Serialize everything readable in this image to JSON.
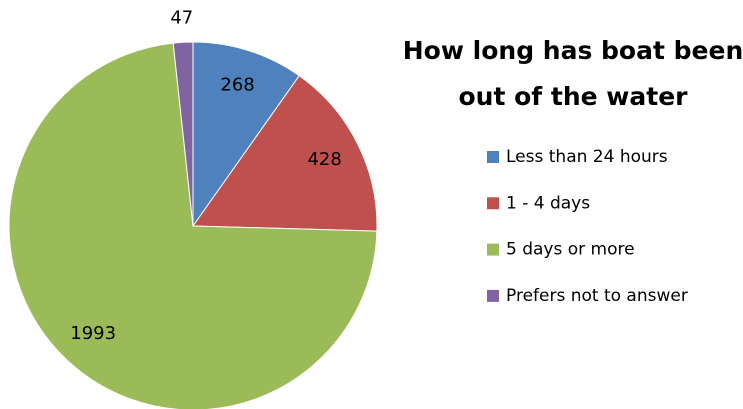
{
  "chart_data": {
    "type": "pie",
    "title": "How long has boat been out of the water",
    "categories": [
      "Less than 24 hours",
      "1 - 4 days",
      "5 days or more",
      "Prefers not to answer"
    ],
    "values": [
      268,
      428,
      1993,
      47
    ],
    "colors": [
      "#4f81bd",
      "#c0504d",
      "#9bbb59",
      "#8064a2"
    ],
    "legend": "right"
  }
}
